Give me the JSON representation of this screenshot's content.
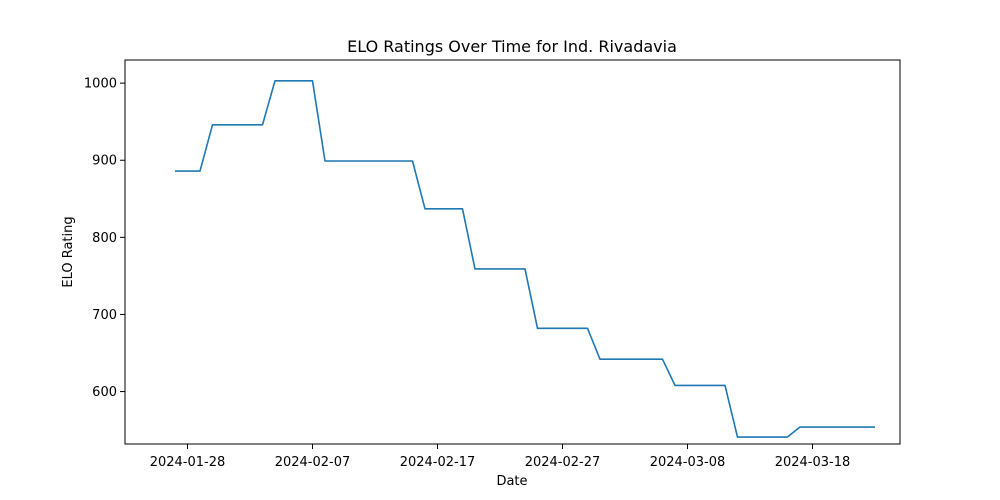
{
  "chart_data": {
    "type": "line",
    "title": "ELO Ratings Over Time for Ind. Rivadavia",
    "xlabel": "Date",
    "ylabel": "ELO Rating",
    "x_tick_labels": [
      "2024-01-28",
      "2024-02-07",
      "2024-02-17",
      "2024-02-27",
      "2024-03-08",
      "2024-03-18"
    ],
    "y_ticks": [
      600,
      700,
      800,
      900,
      1000
    ],
    "xlim": [
      "2024-01-23",
      "2024-03-25"
    ],
    "ylim": [
      532,
      1030
    ],
    "grid": false,
    "legend": "none",
    "series": [
      {
        "color": "#1f77b4",
        "points": [
          {
            "x": "2024-01-27",
            "y": 886
          },
          {
            "x": "2024-01-29",
            "y": 886
          },
          {
            "x": "2024-01-30",
            "y": 946
          },
          {
            "x": "2024-02-03",
            "y": 946
          },
          {
            "x": "2024-02-04",
            "y": 1003
          },
          {
            "x": "2024-02-07",
            "y": 1003
          },
          {
            "x": "2024-02-08",
            "y": 899
          },
          {
            "x": "2024-02-15",
            "y": 899
          },
          {
            "x": "2024-02-16",
            "y": 837
          },
          {
            "x": "2024-02-19",
            "y": 837
          },
          {
            "x": "2024-02-20",
            "y": 759
          },
          {
            "x": "2024-02-24",
            "y": 759
          },
          {
            "x": "2024-02-25",
            "y": 682
          },
          {
            "x": "2024-02-29",
            "y": 682
          },
          {
            "x": "2024-03-01",
            "y": 642
          },
          {
            "x": "2024-03-06",
            "y": 642
          },
          {
            "x": "2024-03-07",
            "y": 608
          },
          {
            "x": "2024-03-11",
            "y": 608
          },
          {
            "x": "2024-03-12",
            "y": 541
          },
          {
            "x": "2024-03-16",
            "y": 541
          },
          {
            "x": "2024-03-17",
            "y": 554
          },
          {
            "x": "2024-03-23",
            "y": 554
          }
        ]
      }
    ]
  }
}
